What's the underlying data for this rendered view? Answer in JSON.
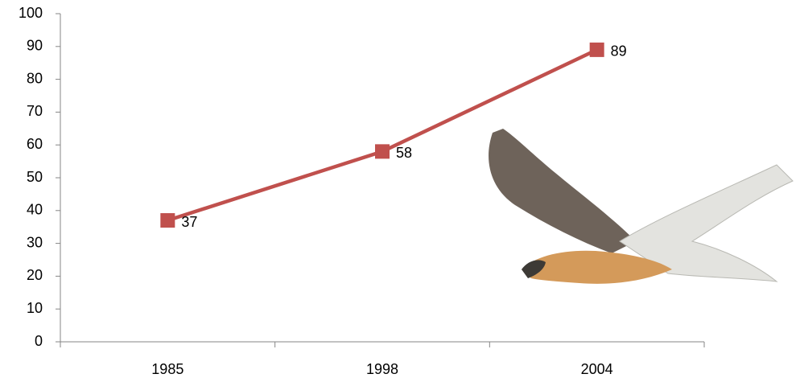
{
  "chart_data": {
    "type": "line",
    "categories": [
      "1985",
      "1998",
      "2004"
    ],
    "values": [
      37,
      58,
      89
    ],
    "color": "#c0504d",
    "ylim": [
      0,
      100
    ],
    "yticks": [
      0,
      10,
      20,
      30,
      40,
      50,
      60,
      70,
      80,
      90,
      100
    ],
    "data_labels": true
  }
}
